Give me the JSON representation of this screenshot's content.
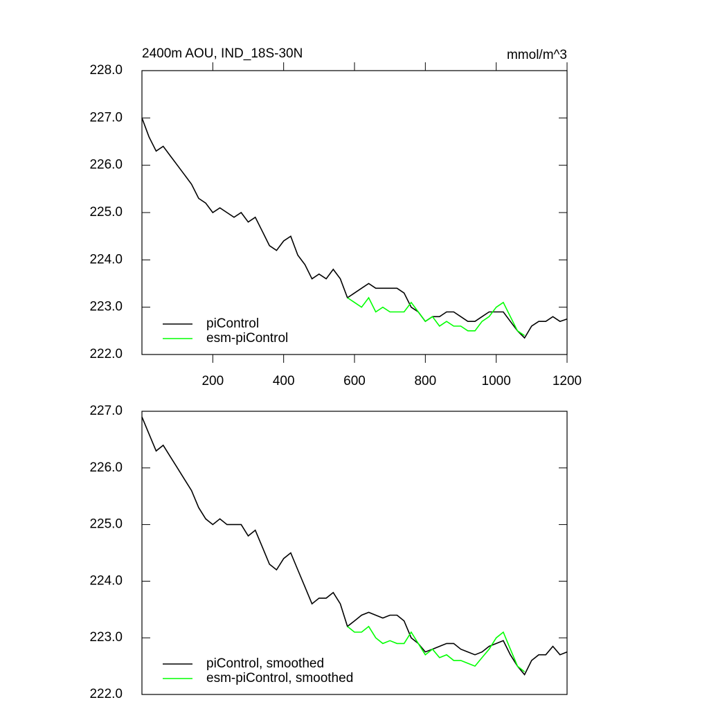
{
  "chart_data": [
    {
      "type": "line",
      "title": "2400m AOU, IND_18S-30N",
      "units": "mmol/m^3",
      "x": [
        0,
        20,
        40,
        60,
        80,
        100,
        120,
        140,
        160,
        180,
        200,
        220,
        240,
        260,
        280,
        300,
        320,
        340,
        360,
        380,
        400,
        420,
        440,
        460,
        480,
        500,
        520,
        540,
        560,
        580,
        600,
        620,
        640,
        660,
        680,
        700,
        720,
        740,
        760,
        780,
        800,
        820,
        840,
        860,
        880,
        900,
        920,
        940,
        960,
        980,
        1000,
        1020,
        1040,
        1060,
        1080,
        1100,
        1120,
        1140,
        1160,
        1180,
        1200
      ],
      "series": [
        {
          "name": "piControl",
          "color": "#000000",
          "values": [
            227.0,
            226.6,
            226.3,
            226.4,
            226.2,
            226.0,
            225.8,
            225.6,
            225.3,
            225.2,
            225.0,
            225.1,
            225.0,
            224.9,
            225.0,
            224.8,
            224.9,
            224.6,
            224.3,
            224.2,
            224.4,
            224.5,
            224.1,
            223.9,
            223.6,
            223.7,
            223.6,
            223.8,
            223.6,
            223.2,
            223.3,
            223.4,
            223.5,
            223.4,
            223.4,
            223.4,
            223.4,
            223.3,
            223.0,
            222.9,
            222.7,
            222.8,
            222.8,
            222.9,
            222.9,
            222.8,
            222.7,
            222.7,
            222.8,
            222.9,
            222.9,
            222.9,
            222.7,
            222.5,
            222.35,
            222.6,
            222.7,
            222.7,
            222.8,
            222.7,
            222.75
          ]
        },
        {
          "name": "esm-piControl",
          "color": "#00ff00",
          "values": [
            null,
            null,
            null,
            null,
            null,
            null,
            null,
            null,
            null,
            null,
            null,
            null,
            null,
            null,
            null,
            null,
            null,
            null,
            null,
            null,
            null,
            null,
            null,
            null,
            null,
            null,
            null,
            null,
            null,
            223.2,
            223.1,
            223.0,
            223.2,
            222.9,
            223.0,
            222.9,
            222.9,
            222.9,
            223.1,
            222.9,
            222.7,
            222.8,
            222.6,
            222.7,
            222.6,
            222.6,
            222.5,
            222.5,
            222.7,
            222.8,
            223.0,
            223.1,
            222.8,
            222.5,
            222.4,
            null,
            null,
            null,
            null,
            null,
            null
          ]
        }
      ],
      "xlim": [
        0,
        1200
      ],
      "xticks": [
        200,
        400,
        600,
        800,
        1000,
        1200
      ],
      "ylim": [
        222,
        228
      ],
      "yticks": [
        {
          "value": 222,
          "label": "222.0"
        },
        {
          "value": 223,
          "label": "223.0"
        },
        {
          "value": 224,
          "label": "224.0"
        },
        {
          "value": 225,
          "label": "225.0"
        },
        {
          "value": 226,
          "label": "226.0"
        },
        {
          "value": 227,
          "label": "227.0"
        },
        {
          "value": 228,
          "label": "228.0"
        }
      ]
    },
    {
      "type": "line",
      "x": [
        0,
        20,
        40,
        60,
        80,
        100,
        120,
        140,
        160,
        180,
        200,
        220,
        240,
        260,
        280,
        300,
        320,
        340,
        360,
        380,
        400,
        420,
        440,
        460,
        480,
        500,
        520,
        540,
        560,
        580,
        600,
        620,
        640,
        660,
        680,
        700,
        720,
        740,
        760,
        780,
        800,
        820,
        840,
        860,
        880,
        900,
        920,
        940,
        960,
        980,
        1000,
        1020,
        1040,
        1060,
        1080,
        1100,
        1120,
        1140,
        1160,
        1180,
        1200
      ],
      "series": [
        {
          "name": "piControl, smoothed",
          "color": "#000000",
          "values": [
            226.9,
            226.6,
            226.3,
            226.4,
            226.2,
            226.0,
            225.8,
            225.6,
            225.3,
            225.1,
            225.0,
            225.1,
            225.0,
            225.0,
            225.0,
            224.8,
            224.9,
            224.6,
            224.3,
            224.2,
            224.4,
            224.5,
            224.2,
            223.9,
            223.6,
            223.7,
            223.7,
            223.8,
            223.6,
            223.2,
            223.3,
            223.4,
            223.45,
            223.4,
            223.35,
            223.4,
            223.4,
            223.3,
            223.0,
            222.9,
            222.75,
            222.8,
            222.85,
            222.9,
            222.9,
            222.8,
            222.75,
            222.7,
            222.75,
            222.85,
            222.9,
            222.95,
            222.7,
            222.5,
            222.35,
            222.6,
            222.7,
            222.7,
            222.85,
            222.7,
            222.75
          ]
        },
        {
          "name": "esm-piControl, smoothed",
          "color": "#00ff00",
          "values": [
            null,
            null,
            null,
            null,
            null,
            null,
            null,
            null,
            null,
            null,
            null,
            null,
            null,
            null,
            null,
            null,
            null,
            null,
            null,
            null,
            null,
            null,
            null,
            null,
            null,
            null,
            null,
            null,
            null,
            223.2,
            223.1,
            223.1,
            223.2,
            223.0,
            222.9,
            222.95,
            222.9,
            222.9,
            223.1,
            222.9,
            222.7,
            222.8,
            222.65,
            222.7,
            222.6,
            222.6,
            222.55,
            222.5,
            222.65,
            222.8,
            223.0,
            223.1,
            222.8,
            222.5,
            222.4,
            null,
            null,
            null,
            null,
            null,
            null
          ]
        }
      ],
      "xlim": [
        0,
        1200
      ],
      "ylim": [
        222,
        227
      ],
      "yticks": [
        {
          "value": 222,
          "label": "222.0"
        },
        {
          "value": 223,
          "label": "223.0"
        },
        {
          "value": 224,
          "label": "224.0"
        },
        {
          "value": 225,
          "label": "225.0"
        },
        {
          "value": 226,
          "label": "226.0"
        },
        {
          "value": 227,
          "label": "227.0"
        }
      ]
    }
  ]
}
